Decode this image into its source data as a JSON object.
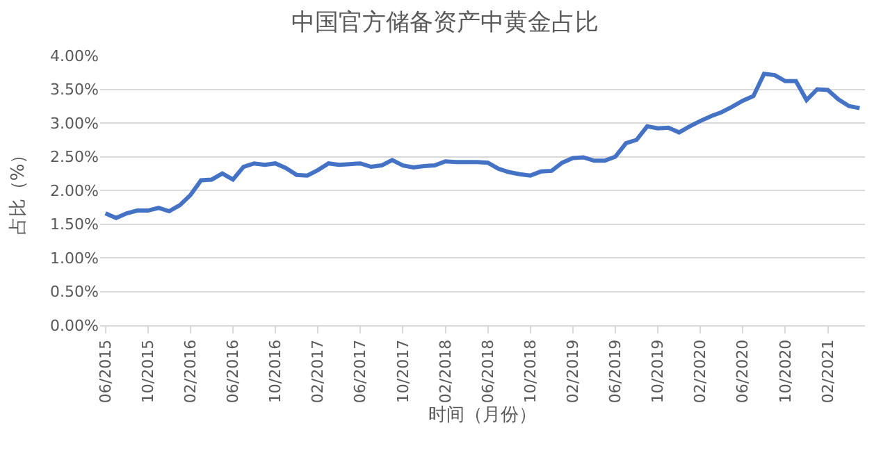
{
  "chart_data": {
    "type": "line",
    "title": "中国官方储备资产中黄金占比",
    "xlabel": "时间（月份）",
    "ylabel": "占比（%）",
    "categories": [
      "06/2015",
      null,
      null,
      null,
      "10/2015",
      null,
      null,
      null,
      "02/2016",
      null,
      null,
      null,
      "06/2016",
      null,
      null,
      null,
      "10/2016",
      null,
      null,
      null,
      "02/2017",
      null,
      null,
      null,
      "06/2017",
      null,
      null,
      null,
      "10/2017",
      null,
      null,
      null,
      "02/2018",
      null,
      null,
      null,
      "06/2018",
      null,
      null,
      null,
      "10/2018",
      null,
      null,
      null,
      "02/2019",
      null,
      null,
      null,
      "06/2019",
      null,
      null,
      null,
      "10/2019",
      null,
      null,
      null,
      "02/2020",
      null,
      null,
      null,
      "06/2020",
      null,
      null,
      null,
      "10/2020",
      null,
      null,
      null,
      "02/2021",
      null,
      null,
      null
    ],
    "series": [
      {
        "color": "#4472c4",
        "values": [
          1.66,
          1.59,
          1.66,
          1.7,
          1.7,
          1.74,
          1.69,
          1.78,
          1.93,
          2.15,
          2.16,
          2.25,
          2.16,
          2.35,
          2.4,
          2.38,
          2.4,
          2.33,
          2.23,
          2.22,
          2.3,
          2.4,
          2.38,
          2.39,
          2.4,
          2.35,
          2.37,
          2.45,
          2.37,
          2.34,
          2.36,
          2.37,
          2.43,
          2.42,
          2.42,
          2.42,
          2.41,
          2.32,
          2.27,
          2.24,
          2.22,
          2.28,
          2.29,
          2.41,
          2.48,
          2.49,
          2.44,
          2.44,
          2.5,
          2.7,
          2.75,
          2.95,
          2.92,
          2.93,
          2.86,
          2.95,
          3.03,
          3.1,
          3.16,
          3.24,
          3.33,
          3.4,
          3.73,
          3.71,
          3.62,
          3.62,
          3.34,
          3.5,
          3.49,
          3.35,
          3.25,
          3.22
        ]
      }
    ],
    "ylim": [
      0,
      4
    ],
    "yticks": [
      {
        "value": 0,
        "label": "0.00%"
      },
      {
        "value": 0.5,
        "label": "0.50%"
      },
      {
        "value": 1,
        "label": "1.00%"
      },
      {
        "value": 1.5,
        "label": "1.50%"
      },
      {
        "value": 2,
        "label": "2.00%"
      },
      {
        "value": 2.5,
        "label": "2.50%"
      },
      {
        "value": 3,
        "label": "3.00%"
      },
      {
        "value": 3.5,
        "label": "3.50%"
      },
      {
        "value": 4,
        "label": "4.00%"
      }
    ],
    "grid": "y",
    "marker": "none",
    "line_style": "solid"
  }
}
